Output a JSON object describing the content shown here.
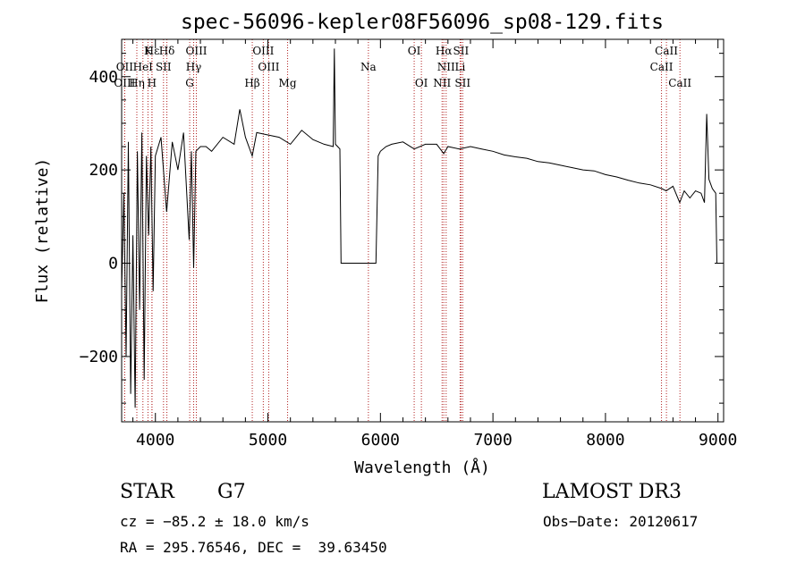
{
  "chart_data": {
    "type": "line",
    "title": "spec-56096-kepler08F56096_sp08-129.fits",
    "xlabel": "Wavelength (Å)",
    "ylabel": "Flux (relative)",
    "xlim": [
      3700,
      9050
    ],
    "ylim": [
      -340,
      480
    ],
    "xticks": [
      4000,
      5000,
      6000,
      7000,
      8000,
      9000
    ],
    "xtick_labels": [
      "4000",
      "5000",
      "6000",
      "7000",
      "8000",
      "9000"
    ],
    "yticks": [
      -200,
      0,
      200,
      400
    ],
    "ytick_labels": [
      "−200",
      "0",
      "200",
      "400"
    ],
    "series": [
      {
        "name": "flux",
        "x": [
          3700,
          3720,
          3740,
          3760,
          3780,
          3800,
          3820,
          3840,
          3860,
          3880,
          3900,
          3920,
          3940,
          3960,
          3980,
          4000,
          4050,
          4100,
          4150,
          4200,
          4250,
          4300,
          4320,
          4340,
          4360,
          4400,
          4450,
          4500,
          4600,
          4700,
          4750,
          4800,
          4861,
          4900,
          5000,
          5100,
          5200,
          5300,
          5400,
          5500,
          5580,
          5590,
          5600,
          5620,
          5640,
          5650,
          5700,
          5800,
          5900,
          5960,
          5980,
          6000,
          6050,
          6100,
          6200,
          6300,
          6400,
          6500,
          6563,
          6600,
          6700,
          6800,
          6900,
          7000,
          7100,
          7200,
          7300,
          7400,
          7500,
          7600,
          7700,
          7800,
          7900,
          8000,
          8100,
          8200,
          8300,
          8400,
          8500,
          8540,
          8600,
          8660,
          8700,
          8750,
          8800,
          8850,
          8880,
          8900,
          8920,
          8950,
          8980,
          8990,
          9000
        ],
        "y": [
          -60,
          150,
          -200,
          260,
          -280,
          60,
          -310,
          240,
          -100,
          280,
          -250,
          230,
          60,
          250,
          -60,
          230,
          270,
          110,
          260,
          200,
          280,
          50,
          240,
          -10,
          240,
          250,
          250,
          240,
          270,
          255,
          330,
          270,
          230,
          280,
          275,
          270,
          255,
          285,
          265,
          255,
          250,
          460,
          255,
          250,
          245,
          0,
          0,
          0,
          0,
          0,
          230,
          240,
          250,
          255,
          260,
          245,
          255,
          255,
          235,
          250,
          245,
          250,
          245,
          240,
          232,
          228,
          225,
          218,
          215,
          210,
          205,
          200,
          198,
          190,
          185,
          178,
          172,
          168,
          160,
          155,
          165,
          130,
          155,
          140,
          155,
          150,
          130,
          320,
          180,
          160,
          150,
          0,
          0
        ]
      }
    ],
    "lines": [
      {
        "label": "Hε",
        "wl": 3970,
        "row": 0
      },
      {
        "label": "K",
        "wl": 3934,
        "row": 0
      },
      {
        "label": "Hδ",
        "wl": 4102,
        "row": 0
      },
      {
        "label": "OIII",
        "wl": 4364,
        "row": 0
      },
      {
        "label": "OIII",
        "wl": 4959,
        "row": 0
      },
      {
        "label": "OI",
        "wl": 6300,
        "row": 0
      },
      {
        "label": "Hα",
        "wl": 6563,
        "row": 0
      },
      {
        "label": "SII",
        "wl": 6716,
        "row": 0
      },
      {
        "label": "CaII",
        "wl": 8542,
        "row": 0
      },
      {
        "label": "OII",
        "wl": 3727,
        "row": 1
      },
      {
        "label": "HeI",
        "wl": 3889,
        "row": 1
      },
      {
        "label": "SII",
        "wl": 4072,
        "row": 1
      },
      {
        "label": "Hγ",
        "wl": 4340,
        "row": 1
      },
      {
        "label": "OIII",
        "wl": 5007,
        "row": 1
      },
      {
        "label": "Na",
        "wl": 5893,
        "row": 1
      },
      {
        "label": "NII",
        "wl": 6584,
        "row": 1
      },
      {
        "label": "Li",
        "wl": 6708,
        "row": 1
      },
      {
        "label": "CaII",
        "wl": 8498,
        "row": 1
      },
      {
        "label": "OIII",
        "wl": 3727,
        "row": 2
      },
      {
        "label": "Hη",
        "wl": 3835,
        "row": 2
      },
      {
        "label": "H",
        "wl": 3969,
        "row": 2
      },
      {
        "label": "G",
        "wl": 4305,
        "row": 2
      },
      {
        "label": "Hβ",
        "wl": 4861,
        "row": 2
      },
      {
        "label": "Mg",
        "wl": 5175,
        "row": 2
      },
      {
        "label": "OI",
        "wl": 6364,
        "row": 2
      },
      {
        "label": "NII",
        "wl": 6548,
        "row": 2
      },
      {
        "label": "SII",
        "wl": 6731,
        "row": 2
      },
      {
        "label": "CaII",
        "wl": 8662,
        "row": 2
      }
    ]
  },
  "info": {
    "object_class": "STAR",
    "subclass": "G7",
    "survey": "LAMOST DR3",
    "cz": "cz = −85.2 ± 18.0 km/s",
    "obs_date": "Obs−Date: 20120617",
    "coords": "RA = 295.76546, DEC =  39.63450"
  }
}
